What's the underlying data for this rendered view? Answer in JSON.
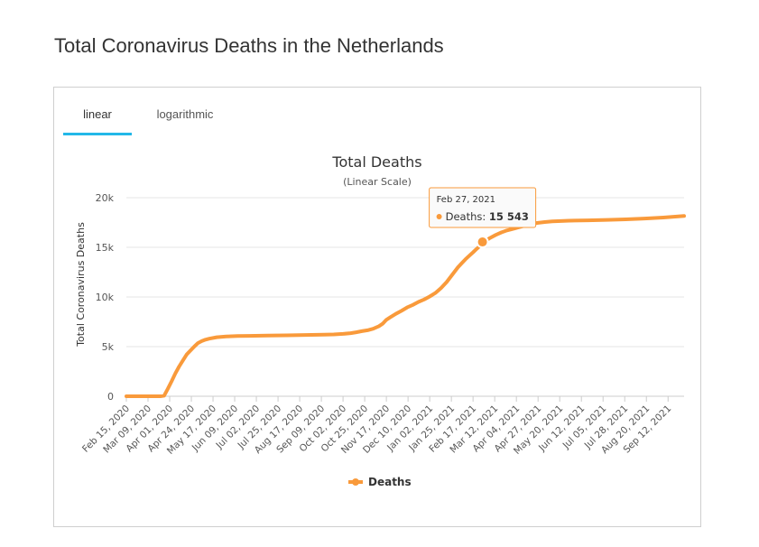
{
  "page": {
    "title": "Total Coronavirus Deaths in the Netherlands"
  },
  "tabs": [
    {
      "label": "linear",
      "active": true
    },
    {
      "label": "logarithmic",
      "active": false
    }
  ],
  "colors": {
    "series": "#f99a3b",
    "tab_underline": "#22b8e8"
  },
  "tooltip": {
    "date": "Feb 27, 2021",
    "series": "Deaths",
    "value_text": "15 543",
    "x_index": 378,
    "value": 15543
  },
  "chart_data": {
    "type": "line",
    "title": "Total Deaths",
    "subtitle": "(Linear Scale)",
    "xlabel": "",
    "ylabel": "Total Coronavirus Deaths",
    "ylim": [
      0,
      20000
    ],
    "yticks": [
      0,
      5000,
      10000,
      15000,
      20000
    ],
    "ytick_labels": [
      "0",
      "5k",
      "10k",
      "15k",
      "20k"
    ],
    "x_start": "Feb 15, 2020",
    "x_days": 592,
    "xtick_labels": [
      "Feb 15, 2020",
      "Mar 09, 2020",
      "Apr 01, 2020",
      "Apr 24, 2020",
      "May 17, 2020",
      "Jun 09, 2020",
      "Jul 02, 2020",
      "Jul 25, 2020",
      "Aug 17, 2020",
      "Sep 09, 2020",
      "Oct 02, 2020",
      "Oct 25, 2020",
      "Nov 17, 2020",
      "Dec 10, 2020",
      "Jan 02, 2021",
      "Jan 25, 2021",
      "Feb 17, 2021",
      "Mar 12, 2021",
      "Apr 04, 2021",
      "Apr 27, 2021",
      "May 20, 2021",
      "Jun 12, 2021",
      "Jul 05, 2021",
      "Jul 28, 2021",
      "Aug 20, 2021",
      "Sep 12, 2021"
    ],
    "grid": true,
    "legend": {
      "position": "bottom-center",
      "entries": [
        "Deaths"
      ]
    },
    "series": [
      {
        "name": "Deaths",
        "points": [
          [
            0,
            0
          ],
          [
            16,
            0
          ],
          [
            20,
            0
          ],
          [
            24,
            0
          ],
          [
            28,
            0
          ],
          [
            32,
            0
          ],
          [
            36,
            0
          ],
          [
            40,
            50
          ],
          [
            44,
            750
          ],
          [
            48,
            1500
          ],
          [
            52,
            2300
          ],
          [
            56,
            3000
          ],
          [
            60,
            3600
          ],
          [
            64,
            4200
          ],
          [
            68,
            4600
          ],
          [
            72,
            5000
          ],
          [
            76,
            5350
          ],
          [
            80,
            5550
          ],
          [
            84,
            5700
          ],
          [
            88,
            5800
          ],
          [
            96,
            5950
          ],
          [
            106,
            6020
          ],
          [
            118,
            6060
          ],
          [
            130,
            6080
          ],
          [
            150,
            6110
          ],
          [
            170,
            6140
          ],
          [
            190,
            6170
          ],
          [
            210,
            6200
          ],
          [
            220,
            6230
          ],
          [
            230,
            6280
          ],
          [
            238,
            6350
          ],
          [
            244,
            6450
          ],
          [
            250,
            6550
          ],
          [
            256,
            6650
          ],
          [
            262,
            6800
          ],
          [
            268,
            7050
          ],
          [
            272,
            7300
          ],
          [
            276,
            7700
          ],
          [
            280,
            7950
          ],
          [
            286,
            8300
          ],
          [
            292,
            8600
          ],
          [
            298,
            8950
          ],
          [
            304,
            9200
          ],
          [
            310,
            9500
          ],
          [
            316,
            9750
          ],
          [
            322,
            10050
          ],
          [
            328,
            10400
          ],
          [
            334,
            10900
          ],
          [
            340,
            11500
          ],
          [
            344,
            12000
          ],
          [
            348,
            12500
          ],
          [
            352,
            13000
          ],
          [
            356,
            13400
          ],
          [
            360,
            13800
          ],
          [
            364,
            14150
          ],
          [
            368,
            14500
          ],
          [
            372,
            14850
          ],
          [
            376,
            15200
          ],
          [
            378,
            15543
          ],
          [
            382,
            15700
          ],
          [
            386,
            15950
          ],
          [
            392,
            16250
          ],
          [
            398,
            16500
          ],
          [
            404,
            16700
          ],
          [
            410,
            16850
          ],
          [
            416,
            17000
          ],
          [
            422,
            17150
          ],
          [
            428,
            17300
          ],
          [
            436,
            17450
          ],
          [
            444,
            17550
          ],
          [
            452,
            17620
          ],
          [
            470,
            17680
          ],
          [
            490,
            17720
          ],
          [
            510,
            17760
          ],
          [
            530,
            17820
          ],
          [
            550,
            17900
          ],
          [
            570,
            18000
          ],
          [
            592,
            18150
          ]
        ]
      }
    ]
  }
}
